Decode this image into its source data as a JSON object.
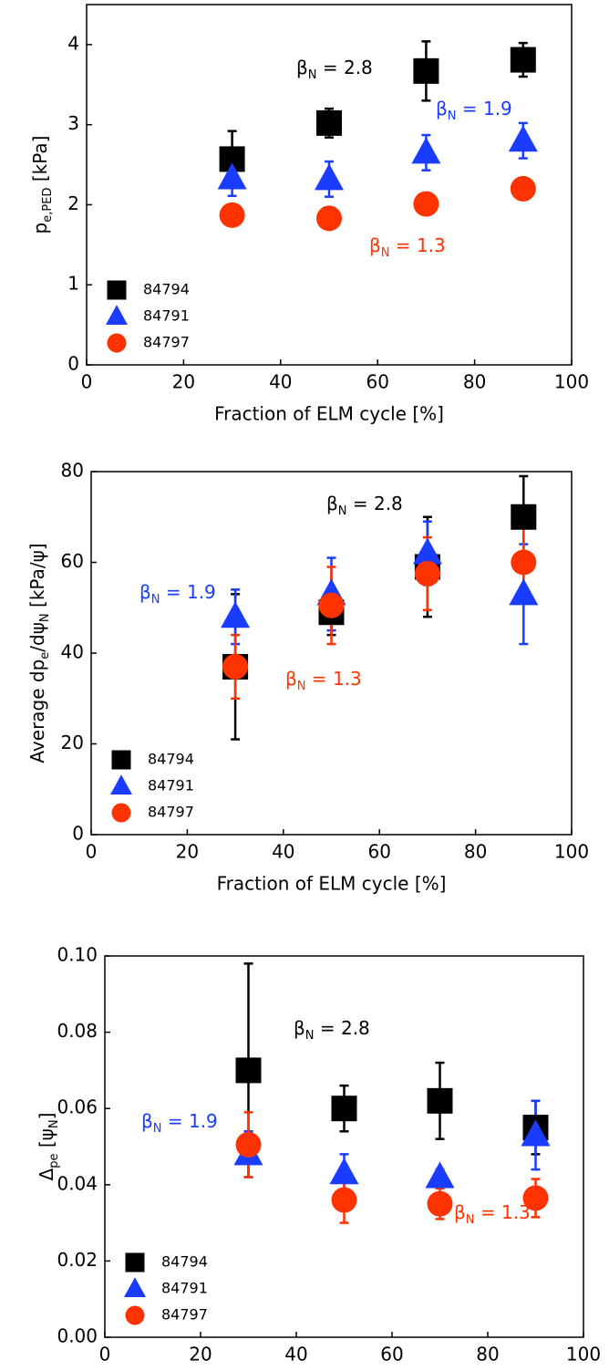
{
  "chart_data": [
    {
      "type": "scatter",
      "x": [
        30,
        50,
        70,
        90
      ],
      "xlim": [
        0,
        100
      ],
      "xticks": [
        0,
        20,
        40,
        60,
        80,
        100
      ],
      "ylim": [
        0,
        4.5
      ],
      "yticks": [
        0,
        1,
        2,
        3,
        4
      ],
      "xlabel": "Fraction of ELM cycle [%]",
      "ylabel": [
        "p",
        "e,PED",
        " [kPa]"
      ],
      "series": [
        {
          "name": "84794",
          "marker": "square",
          "color": "#000000",
          "values": [
            2.57,
            3.02,
            3.67,
            3.81
          ],
          "errors": [
            0.35,
            0.18,
            0.37,
            0.21
          ]
        },
        {
          "name": "84791",
          "marker": "triangle",
          "color": "#1a3cff",
          "values": [
            2.33,
            2.32,
            2.65,
            2.8
          ],
          "errors": [
            0.22,
            0.22,
            0.22,
            0.22
          ]
        },
        {
          "name": "84797",
          "marker": "circle",
          "color": "#ff3300",
          "values": [
            1.87,
            1.83,
            2.01,
            2.2
          ],
          "errors": [
            0.05,
            0.05,
            0.05,
            0.05
          ]
        }
      ],
      "annotations": [
        {
          "parts": [
            "β",
            "N",
            " = 2.8"
          ],
          "color": "#000000"
        },
        {
          "parts": [
            "β",
            "N",
            " = 1.9"
          ],
          "color": "#1a3cff"
        },
        {
          "parts": [
            "β",
            "N",
            " = 1.3"
          ],
          "color": "#ff3300"
        }
      ]
    },
    {
      "type": "scatter",
      "x": [
        30,
        50,
        70,
        90
      ],
      "xlim": [
        0,
        100
      ],
      "xticks": [
        0,
        20,
        40,
        60,
        80,
        100
      ],
      "ylim": [
        0,
        80
      ],
      "yticks": [
        0,
        20,
        40,
        60,
        80
      ],
      "xlabel": "Fraction of ELM cycle [%]",
      "ylabel": [
        "Average dp",
        "e",
        "/dψ",
        "N",
        " [kPa/ψ]"
      ],
      "series": [
        {
          "name": "84794",
          "marker": "square",
          "color": "#000000",
          "values": [
            37,
            49,
            59,
            70
          ],
          "errors": [
            16,
            5,
            11,
            9
          ]
        },
        {
          "name": "84791",
          "marker": "triangle",
          "color": "#1a3cff",
          "values": [
            48,
            53,
            62,
            53
          ],
          "errors": [
            6,
            8,
            7,
            11
          ]
        },
        {
          "name": "84797",
          "marker": "circle",
          "color": "#ff3300",
          "values": [
            37,
            50.5,
            57.5,
            60
          ],
          "errors": [
            7,
            8.5,
            8,
            8
          ]
        }
      ],
      "annotations": [
        {
          "parts": [
            "β",
            "N",
            " = 2.8"
          ],
          "color": "#000000"
        },
        {
          "parts": [
            "β",
            "N",
            " = 1.9"
          ],
          "color": "#1a3cff"
        },
        {
          "parts": [
            "β",
            "N",
            " = 1.3"
          ],
          "color": "#ff3300"
        }
      ]
    },
    {
      "type": "scatter",
      "x": [
        30,
        50,
        70,
        90
      ],
      "xlim": [
        0,
        100
      ],
      "xticks": [
        0,
        20,
        40,
        60,
        80,
        100
      ],
      "ylim": [
        0,
        0.1
      ],
      "yticks": [
        {
          "value": 0,
          "label": "0.00"
        },
        {
          "value": 0.02,
          "label": "0.02"
        },
        {
          "value": 0.04,
          "label": "0.04"
        },
        {
          "value": 0.06,
          "label": "0.06"
        },
        {
          "value": 0.08,
          "label": "0.08"
        },
        {
          "value": 0.1,
          "label": "0.10"
        }
      ],
      "xlabel": "Fraction of ELM cycle [%]",
      "ylabel": [
        "Δ",
        "pe",
        " [ψ",
        "N",
        "]"
      ],
      "series": [
        {
          "name": "84794",
          "marker": "square",
          "color": "#000000",
          "values": [
            0.07,
            0.06,
            0.062,
            0.055
          ],
          "errors": [
            0.028,
            0.006,
            0.01,
            0.007
          ]
        },
        {
          "name": "84791",
          "marker": "triangle",
          "color": "#1a3cff",
          "values": [
            0.048,
            0.043,
            0.042,
            0.053
          ],
          "errors": [
            0.006,
            0.005,
            0.002,
            0.009
          ]
        },
        {
          "name": "84797",
          "marker": "circle",
          "color": "#ff3300",
          "values": [
            0.0505,
            0.036,
            0.035,
            0.0365
          ],
          "errors": [
            0.0085,
            0.006,
            0.004,
            0.005
          ]
        }
      ],
      "annotations": [
        {
          "parts": [
            "β",
            "N",
            " = 2.8"
          ],
          "color": "#000000"
        },
        {
          "parts": [
            "β",
            "N",
            " = 1.9"
          ],
          "color": "#1a3cff"
        },
        {
          "parts": [
            "β",
            "N",
            " = 1.3"
          ],
          "color": "#ff3300"
        }
      ]
    }
  ]
}
